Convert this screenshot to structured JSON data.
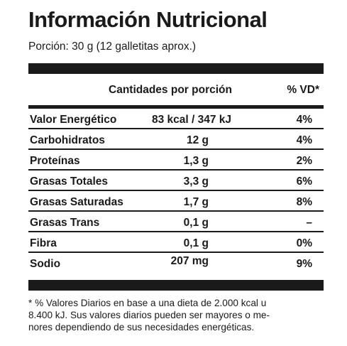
{
  "title": "Información Nutricional",
  "portion": "Porción: 30 g (12 galletitas aprox.)",
  "header": {
    "amount_label": "Cantidades por porción",
    "vd_label": "% VD*"
  },
  "rows": [
    {
      "name": "Valor Energético",
      "amount": "83 kcal / 347 kJ",
      "vd": "4%"
    },
    {
      "name": "Carbohidratos",
      "amount": "12 g",
      "vd": "4%"
    },
    {
      "name": "Proteínas",
      "amount": "1,3 g",
      "vd": "2%"
    },
    {
      "name": "Grasas Totales",
      "amount": "3,3 g",
      "vd": "6%"
    },
    {
      "name": "Grasas Saturadas",
      "amount": "1,7 g",
      "vd": "8%"
    },
    {
      "name": "Grasas Trans",
      "amount": "0,1 g",
      "vd": "–"
    },
    {
      "name": "Fibra",
      "amount": "0,1 g",
      "vd": "0%"
    },
    {
      "name": "Sodio",
      "amount": "207 mg",
      "vd": "9%"
    }
  ],
  "footnote": {
    "line1": "* % Valores Diarios en base a una dieta de 2.000 kcal u",
    "line2": "8.400 kJ. Sus valores diarios pueden ser mayores o me-",
    "line3": "nores dependiendo de sus necesidades energéticas."
  }
}
